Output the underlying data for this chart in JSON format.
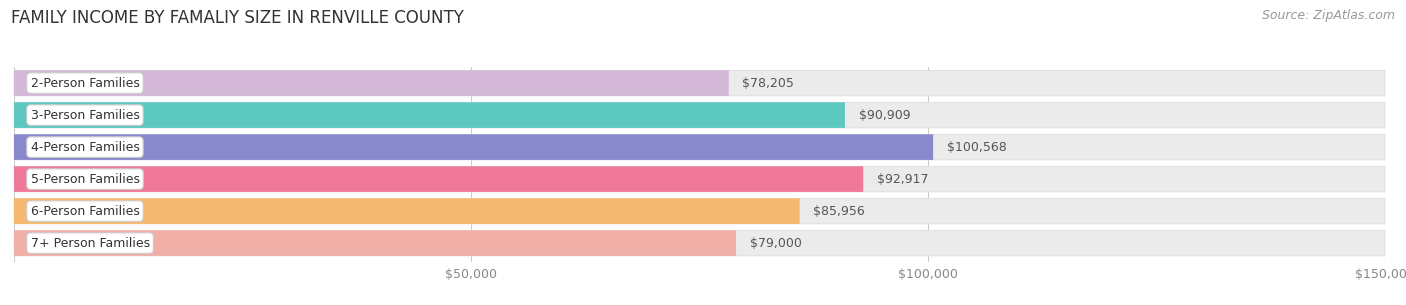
{
  "title": "FAMILY INCOME BY FAMALIY SIZE IN RENVILLE COUNTY",
  "source": "Source: ZipAtlas.com",
  "categories": [
    "2-Person Families",
    "3-Person Families",
    "4-Person Families",
    "5-Person Families",
    "6-Person Families",
    "7+ Person Families"
  ],
  "values": [
    78205,
    90909,
    100568,
    92917,
    85956,
    79000
  ],
  "value_labels": [
    "$78,205",
    "$90,909",
    "$100,568",
    "$92,917",
    "$85,956",
    "$79,000"
  ],
  "bar_colors": [
    "#d4b8d8",
    "#5cc8c0",
    "#8888cc",
    "#f07898",
    "#f5b870",
    "#f0b0a8"
  ],
  "xlim": [
    0,
    150000
  ],
  "xticks": [
    0,
    50000,
    100000,
    150000
  ],
  "xtick_labels": [
    "",
    "$50,000",
    "$100,000",
    "$150,000"
  ],
  "title_fontsize": 12,
  "label_fontsize": 9,
  "value_fontsize": 9,
  "source_fontsize": 9,
  "bg_color": "#ffffff",
  "bar_bg_color": "#ebebeb"
}
